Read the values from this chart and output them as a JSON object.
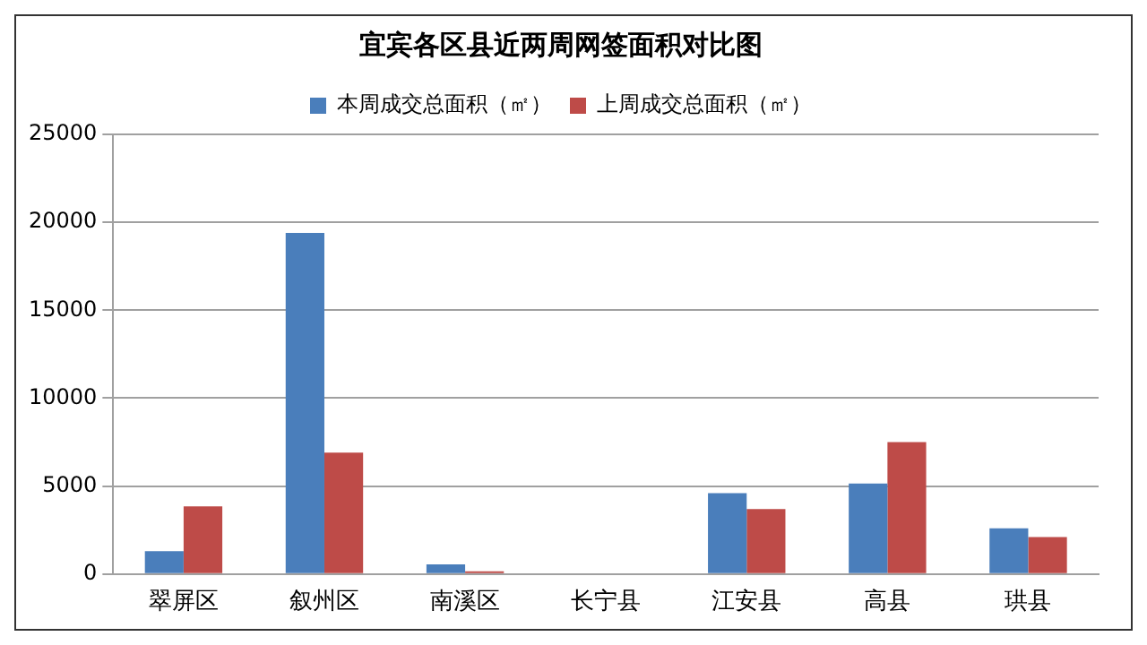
{
  "chart_data": {
    "type": "bar",
    "title": "宜宾各区县近两周网签面积对比图",
    "categories": [
      "翠屏区",
      "叙州区",
      "南溪区",
      "长宁县",
      "江安县",
      "高县",
      "珙县"
    ],
    "series": [
      {
        "name": "本周成交总面积（㎡）",
        "color": "#4a7ebb",
        "values": [
          1300,
          19400,
          550,
          0,
          4600,
          5150,
          2600
        ]
      },
      {
        "name": "上周成交总面积（㎡）",
        "color": "#be4b48",
        "values": [
          3850,
          6900,
          150,
          0,
          3700,
          7500,
          2100
        ]
      }
    ],
    "ylim": [
      0,
      25000
    ],
    "yticks": [
      0,
      5000,
      10000,
      15000,
      20000,
      25000
    ],
    "grid": "y",
    "legend": "top"
  }
}
